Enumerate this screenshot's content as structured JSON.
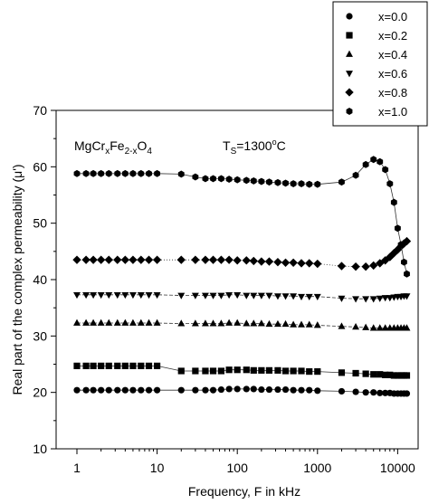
{
  "chart_data": {
    "type": "scatter",
    "x_scale": "log",
    "xlabel": "Frequency, F in kHz",
    "ylabel": "Real part of the complex permeability (μ')",
    "xlim": [
      0.55,
      18000
    ],
    "ylim": [
      10,
      70
    ],
    "x_ticks": [
      1,
      10,
      100,
      1000,
      10000
    ],
    "x_tick_labels": [
      "1",
      "10",
      "100",
      "1000",
      "10000"
    ],
    "y_ticks": [
      10,
      20,
      30,
      40,
      50,
      60,
      70
    ],
    "y_tick_labels": [
      "10",
      "20",
      "30",
      "40",
      "50",
      "60",
      "70"
    ],
    "grid": false,
    "legend_position": "top-right, outside plot",
    "annotations": {
      "formula": {
        "base1": "MgCr",
        "sub1": "x",
        "base2": "Fe",
        "sub2": "2-x",
        "base3": "O",
        "sub3": "4"
      },
      "temperature": {
        "prefix": "T",
        "sub": "S",
        "value": "=1300",
        "sup": "o",
        "unit": "C"
      }
    },
    "x": [
      1,
      1.3,
      1.6,
      2,
      2.5,
      3.2,
      4,
      5,
      6.3,
      7.9,
      10,
      20,
      30,
      40,
      50,
      63,
      79,
      100,
      130,
      160,
      200,
      250,
      320,
      400,
      500,
      630,
      790,
      1000,
      2000,
      3000,
      4000,
      5000,
      6000,
      7000,
      8000,
      9000,
      10000,
      11000,
      12000,
      13000
    ],
    "series": [
      {
        "name": "x=0.0",
        "marker": "circle",
        "values": [
          20.4,
          20.4,
          20.4,
          20.4,
          20.4,
          20.4,
          20.4,
          20.4,
          20.4,
          20.4,
          20.4,
          20.4,
          20.4,
          20.4,
          20.4,
          20.5,
          20.6,
          20.6,
          20.6,
          20.6,
          20.5,
          20.5,
          20.5,
          20.5,
          20.4,
          20.4,
          20.4,
          20.3,
          20.2,
          20.1,
          20.0,
          20.0,
          19.9,
          19.9,
          19.9,
          19.8,
          19.8,
          19.8,
          19.8,
          19.8
        ]
      },
      {
        "name": "x=0.2",
        "marker": "square",
        "values": [
          24.7,
          24.7,
          24.7,
          24.7,
          24.7,
          24.7,
          24.7,
          24.7,
          24.7,
          24.7,
          24.7,
          23.8,
          23.8,
          23.8,
          23.8,
          23.8,
          24.0,
          24.0,
          24.0,
          23.9,
          23.9,
          23.9,
          23.9,
          23.8,
          23.8,
          23.8,
          23.7,
          23.7,
          23.5,
          23.4,
          23.3,
          23.2,
          23.2,
          23.1,
          23.1,
          23.0,
          23.0,
          23.0,
          23.0,
          23.0
        ]
      },
      {
        "name": "x=0.4",
        "marker": "triangle-up",
        "values": [
          32.3,
          32.3,
          32.3,
          32.3,
          32.3,
          32.3,
          32.3,
          32.3,
          32.3,
          32.3,
          32.3,
          32.2,
          32.2,
          32.2,
          32.2,
          32.2,
          32.3,
          32.3,
          32.2,
          32.2,
          32.2,
          32.1,
          32.1,
          32.1,
          32.0,
          32.0,
          32.0,
          31.9,
          31.7,
          31.6,
          31.5,
          31.4,
          31.4,
          31.4,
          31.4,
          31.4,
          31.4,
          31.4,
          31.4,
          31.4
        ]
      },
      {
        "name": "x=0.6",
        "marker": "triangle-down",
        "values": [
          37.3,
          37.3,
          37.3,
          37.3,
          37.3,
          37.3,
          37.3,
          37.3,
          37.3,
          37.3,
          37.3,
          37.2,
          37.2,
          37.2,
          37.2,
          37.2,
          37.3,
          37.3,
          37.2,
          37.2,
          37.2,
          37.2,
          37.1,
          37.1,
          37.1,
          37.0,
          37.0,
          37.0,
          36.7,
          36.6,
          36.6,
          36.6,
          36.7,
          36.8,
          36.8,
          36.9,
          37.0,
          37.0,
          37.1,
          37.1
        ]
      },
      {
        "name": "x=0.8",
        "marker": "diamond",
        "values": [
          43.5,
          43.5,
          43.5,
          43.5,
          43.5,
          43.5,
          43.5,
          43.5,
          43.5,
          43.5,
          43.5,
          43.5,
          43.5,
          43.5,
          43.5,
          43.5,
          43.5,
          43.4,
          43.4,
          43.3,
          43.2,
          43.2,
          43.1,
          43.0,
          43.0,
          42.9,
          42.9,
          42.8,
          42.4,
          42.3,
          42.3,
          42.5,
          42.9,
          43.4,
          44.0,
          44.7,
          45.3,
          45.9,
          46.4,
          46.8
        ]
      },
      {
        "name": "x=1.0",
        "marker": "hexagon",
        "values": [
          58.8,
          58.8,
          58.8,
          58.8,
          58.8,
          58.8,
          58.8,
          58.8,
          58.8,
          58.8,
          58.8,
          58.7,
          58.2,
          57.9,
          57.9,
          57.9,
          57.8,
          57.7,
          57.6,
          57.5,
          57.4,
          57.3,
          57.2,
          57.1,
          57.0,
          57.0,
          56.9,
          56.9,
          57.3,
          58.5,
          60.4,
          61.3,
          60.9,
          59.5,
          57.0,
          53.7,
          49.1,
          46.2,
          43.1,
          41.0
        ]
      }
    ]
  }
}
